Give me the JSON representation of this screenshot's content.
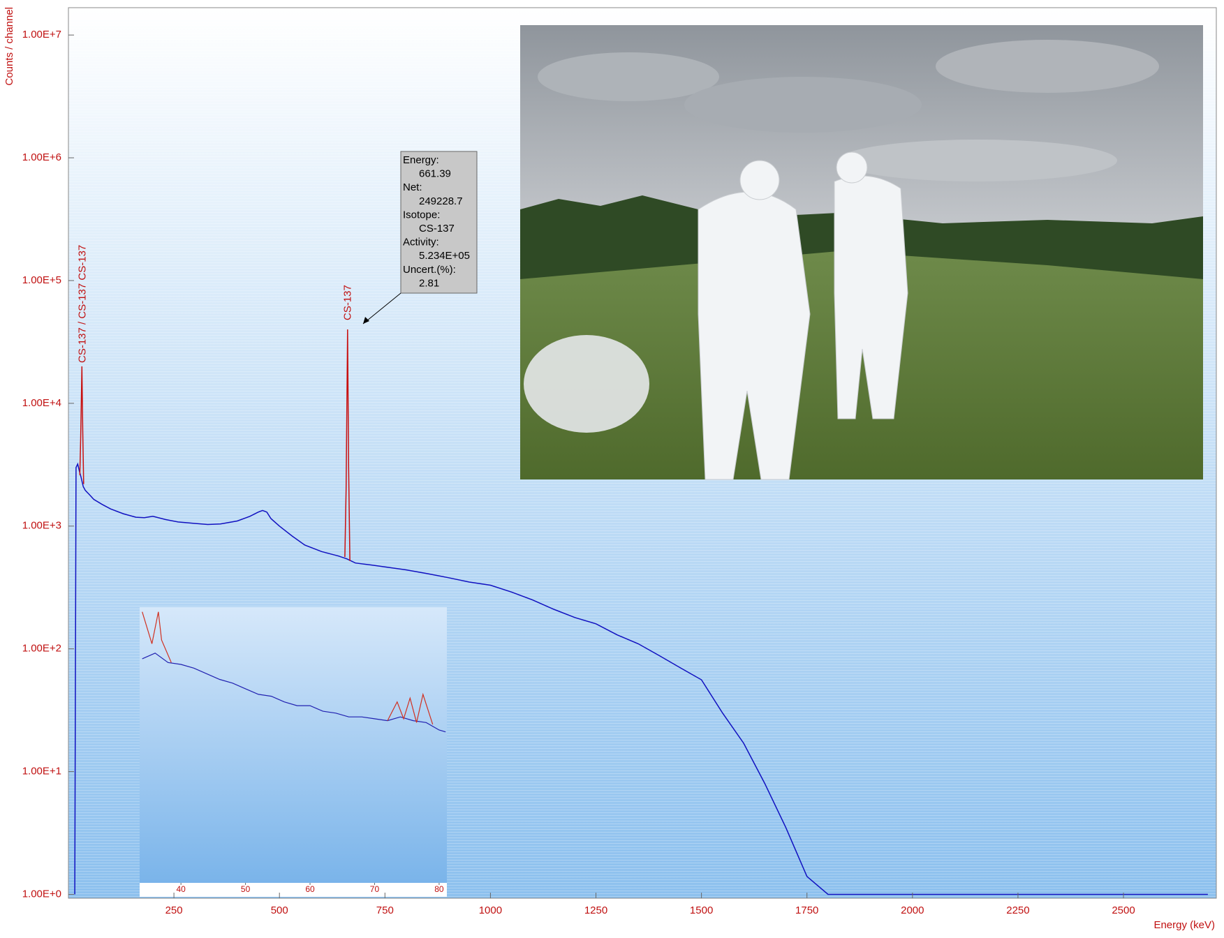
{
  "chart_data": [
    {
      "type": "line",
      "x_label": "Energy (keV)",
      "y_label": "Counts / channel",
      "log_y": true,
      "grid": false,
      "xlim": [
        0,
        2720
      ],
      "ylim": [
        0.93,
        16700000
      ],
      "xticks": [
        250,
        500,
        750,
        1000,
        1250,
        1500,
        1750,
        2000,
        2250,
        2500
      ],
      "yticks": [
        {
          "value": 1,
          "label": "1.00E+0"
        },
        {
          "value": 10,
          "label": "1.00E+1"
        },
        {
          "value": 100,
          "label": "1.00E+2"
        },
        {
          "value": 1000,
          "label": "1.00E+3"
        },
        {
          "value": 10000,
          "label": "1.00E+4"
        },
        {
          "value": 100000,
          "label": "1.00E+5"
        },
        {
          "value": 1000000,
          "label": "1.00E+6"
        },
        {
          "value": 10000000,
          "label": "1.00E+7"
        }
      ],
      "series": [
        {
          "color": "#1010c0",
          "x": [
            15,
            18,
            22,
            26,
            30,
            35,
            40,
            50,
            60,
            80,
            100,
            130,
            160,
            180,
            200,
            230,
            260,
            300,
            330,
            360,
            400,
            430,
            450,
            460,
            470,
            480,
            500,
            530,
            560,
            600,
            640,
            660,
            680,
            720,
            760,
            800,
            850,
            900,
            950,
            1000,
            1050,
            1100,
            1150,
            1200,
            1250,
            1300,
            1350,
            1400,
            1450,
            1500,
            1550,
            1600,
            1650,
            1700,
            1750,
            1800,
            2000,
            2500,
            2700
          ],
          "values": [
            1,
            3000,
            3200,
            2800,
            2500,
            2100,
            1950,
            1800,
            1650,
            1500,
            1380,
            1260,
            1180,
            1170,
            1200,
            1130,
            1080,
            1050,
            1030,
            1040,
            1100,
            1200,
            1300,
            1340,
            1300,
            1150,
            1000,
            830,
            700,
            620,
            570,
            540,
            500,
            480,
            460,
            440,
            410,
            380,
            350,
            330,
            290,
            250,
            210,
            180,
            160,
            130,
            110,
            88,
            70,
            56,
            30,
            17,
            8,
            3.5,
            1.4,
            1,
            1,
            1,
            1
          ]
        },
        {
          "color": "#c81010",
          "x": [
            27,
            29,
            32,
            34,
            36,
            37,
            655,
            658,
            661.39,
            664,
            667
          ],
          "values": [
            2600,
            5000,
            20000,
            6000,
            2200,
            null,
            560,
            2000,
            40000,
            3000,
            520
          ]
        }
      ],
      "annotations": {
        "peak_labels": [
          {
            "x": 32,
            "text": "CS-137  / CS-137 CS-137"
          },
          {
            "x": 661.39,
            "text": "CS-137"
          }
        ],
        "tooltip": [
          "Energy:",
          "661.39",
          "Net:",
          "249228.7",
          "Isotope:",
          "CS-137",
          "Activity:",
          "5.234E+05",
          "Uncert.(%):",
          "2.81"
        ]
      }
    },
    {
      "type": "line",
      "xlim": [
        33.6,
        81.2
      ],
      "ylim": [
        655,
        2125
      ],
      "xticks": [
        40,
        50,
        60,
        70,
        80
      ],
      "series": [
        {
          "color": "#2020b0",
          "x": [
            34,
            36,
            38,
            40,
            42,
            44,
            46,
            48,
            50,
            52,
            54,
            56,
            58,
            60,
            62,
            64,
            66,
            68,
            70,
            72,
            74,
            76,
            78,
            80,
            81
          ],
          "values": [
            1850,
            1880,
            1830,
            1820,
            1800,
            1770,
            1740,
            1720,
            1690,
            1660,
            1650,
            1620,
            1600,
            1600,
            1570,
            1560,
            1540,
            1540,
            1530,
            1520,
            1540,
            1520,
            1510,
            1470,
            1460
          ]
        },
        {
          "color": "#d03020",
          "x": [
            34,
            35.5,
            36.5,
            37,
            38.5,
            39,
            72,
            73.5,
            74.5,
            75.5,
            76.5,
            77.5,
            79
          ],
          "values": [
            2100,
            1930,
            2100,
            1950,
            1830,
            null,
            1520,
            1620,
            1530,
            1640,
            1510,
            1660,
            1500
          ]
        }
      ]
    }
  ]
}
